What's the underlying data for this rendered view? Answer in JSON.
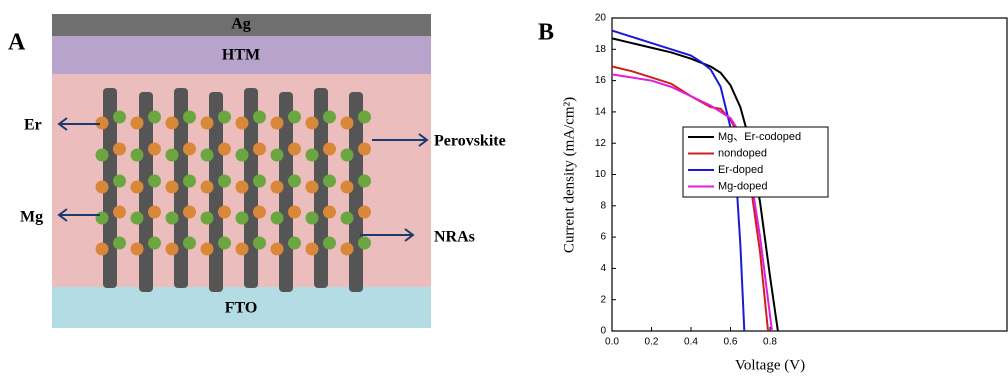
{
  "diagram": {
    "panel_label": "A",
    "layers": [
      "Ag",
      "HTM",
      "FTO"
    ],
    "labels": [
      "Er",
      "Mg",
      "Perovskite",
      "NRAs"
    ]
  },
  "chart_data": {
    "type": "line",
    "panel_label": "B",
    "xlabel": "Voltage (V)",
    "ylabel": "Current density (mA/cm²)",
    "xlim": [
      0,
      2.0
    ],
    "ylim": [
      0,
      20
    ],
    "xticks": [
      {
        "value": 0,
        "label": "0.0"
      },
      0.2,
      0.4,
      0.6,
      0.8
    ],
    "yticks": [
      0,
      2,
      4,
      6,
      8,
      10,
      12,
      14,
      16,
      18,
      20
    ],
    "series": [
      {
        "name": "Mg、Er-codoped",
        "color": "#000000",
        "x": [
          0,
          0.1,
          0.2,
          0.3,
          0.4,
          0.5,
          0.55,
          0.6,
          0.65,
          0.7,
          0.75,
          0.8,
          0.84
        ],
        "values": [
          18.7,
          18.4,
          18.1,
          17.8,
          17.4,
          16.9,
          16.5,
          15.7,
          14.3,
          12.0,
          8.2,
          3.5,
          0
        ]
      },
      {
        "name": "nondoped",
        "color": "#cc1f1f",
        "x": [
          0,
          0.1,
          0.2,
          0.3,
          0.4,
          0.5,
          0.55,
          0.6,
          0.65,
          0.7,
          0.75,
          0.79
        ],
        "values": [
          16.9,
          16.6,
          16.2,
          15.8,
          15.0,
          14.3,
          14.2,
          13.5,
          12.3,
          9.5,
          5.0,
          0
        ]
      },
      {
        "name": "Er-doped",
        "color": "#1a1adb",
        "x": [
          0,
          0.1,
          0.2,
          0.3,
          0.4,
          0.45,
          0.5,
          0.55,
          0.6,
          0.63,
          0.65,
          0.67
        ],
        "values": [
          19.2,
          18.8,
          18.4,
          18.0,
          17.6,
          17.2,
          16.7,
          15.6,
          13.0,
          9.5,
          5.5,
          0
        ]
      },
      {
        "name": "Mg-doped",
        "color": "#e01ee0",
        "x": [
          0,
          0.1,
          0.2,
          0.3,
          0.4,
          0.5,
          0.55,
          0.6,
          0.65,
          0.7,
          0.75,
          0.81
        ],
        "values": [
          16.4,
          16.2,
          16.0,
          15.6,
          15.0,
          14.4,
          14.0,
          13.6,
          12.6,
          10.0,
          6.0,
          0
        ]
      }
    ]
  }
}
